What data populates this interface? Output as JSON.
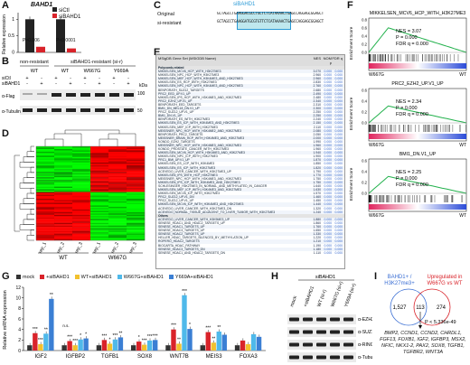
{
  "panels": {
    "A": {
      "label": "A",
      "gene": "BAHD1",
      "ylabel": "Relative expression",
      "legend": [
        "siCtl",
        "siBAHD1"
      ],
      "pvals": [
        "P=0.006",
        "P<0.0001"
      ],
      "chart_data": {
        "type": "bar",
        "categories": [
          "1",
          "2"
        ],
        "ylim": [
          0,
          1.2
        ],
        "yticks": [
          "0",
          "0.5",
          "1"
        ],
        "series": [
          {
            "name": "siCtl",
            "values": [
              1.0,
              1.0
            ]
          },
          {
            "name": "siBAHD1",
            "values": [
              0.17,
              0.12
            ]
          }
        ]
      }
    },
    "B": {
      "label": "B",
      "nonres": "non-resistant",
      "res": "siBAHD1-resistant (si-r)",
      "cols": [
        "WT",
        "WT",
        "W667G",
        "Y669A"
      ],
      "rows": [
        "siCtl",
        "siBAHD1"
      ],
      "plusminus": [
        [
          "+",
          "-",
          "+",
          "-",
          "+",
          "-",
          "+",
          "-"
        ],
        [
          "-",
          "+",
          "-",
          "+",
          "-",
          "+",
          "-",
          "+"
        ]
      ],
      "kda": "kDa",
      "kda1": "100",
      "kda2": "50",
      "blot1": "α-Flag",
      "blot2": "α-Tubulin"
    },
    "C": {
      "label": "C",
      "title": "siBAHD1",
      "row1": "Original",
      "row2": "si-resistant",
      "seq1": "GCTAGCCTGAAGGACGCCTGCTCTCATAAAACTGAGCCAGGAGCGGAGCT",
      "seq2": "GCTAGCCTGAAGGATGCGTGTTCTCATAAAACTGAGCCAGGAGCGGAGCT"
    },
    "D": {
      "label": "D",
      "reps": [
        "rep_1",
        "rep_2",
        "rep_3",
        "rep_1",
        "rep_2",
        "rep_3"
      ],
      "groups": [
        "WT",
        "W667G"
      ]
    },
    "E": {
      "label": "E",
      "header": [
        "MSigDB Gene Set (MSIGDB Name)",
        "NES",
        "NOM p",
        "FDR q"
      ],
      "section1": "Polycomb-related",
      "rows": [
        [
          "MIKKELSEN_MCV6_HCP_WITH_H3K27ME3",
          "3.070",
          "0.000",
          "0.000"
        ],
        [
          "MIKKELSEN_NPC_HCP_WITH_H3K27ME3",
          "2.960",
          "0.000",
          "0.000"
        ],
        [
          "MIKKELSEN_MEF_HCP_WITH_H3K4ME3_AND_H3K27ME3",
          "2.960",
          "0.000",
          "0.000"
        ],
        [
          "MIKKELSEN_ES_HCP_WITH_H3K27ME3",
          "2.830",
          "0.000",
          "0.000"
        ],
        [
          "MIKKELSEN_NPC_HCP_WITH_H3K4ME3_AND_H3K27ME3",
          "2.760",
          "0.000",
          "0.000"
        ],
        [
          "BENPORATH_SUZ12_TARGETS",
          "2.680",
          "0.000",
          "0.000"
        ],
        [
          "PRC2_EED_UP.V1_UP",
          "2.490",
          "0.000",
          "0.000"
        ],
        [
          "MIKKELSEN_IPS_HCP_WITH_H3K4ME3_AND_H3K27ME3",
          "2.480",
          "0.000",
          "0.000"
        ],
        [
          "PRC2_EZH2_UP.V1_UP",
          "2.340",
          "0.000",
          "0.000"
        ],
        [
          "BENPORATH_EED_TARGETS",
          "2.310",
          "0.000",
          "0.000"
        ],
        [
          "BMI1_DN_MEL18_DN.V1_UP",
          "2.300",
          "0.000",
          "0.000"
        ],
        [
          "PRC2_SUZ12_UP.V1_UP",
          "2.250",
          "0.000",
          "0.000"
        ],
        [
          "BMI1_DN.V1_UP",
          "2.250",
          "0.000",
          "0.000"
        ],
        [
          "BENPORATH_ES_WITH_H3K27ME3",
          "2.240",
          "0.000",
          "0.000"
        ],
        [
          "MIKKELSEN_ES_ICP_WITH_H3K4ME3_AND_H3K27ME3",
          "2.150",
          "0.000",
          "0.000"
        ],
        [
          "MIKKELSEN_MEF_ICP_WITH_H3K27ME3",
          "2.110",
          "0.000",
          "0.000"
        ],
        [
          "MEISSNER_NPC_HCP_WITH_H3K4ME2_AND_H3K27ME3",
          "2.080",
          "0.000",
          "0.000"
        ],
        [
          "BENPORATH_PRC2_TARGETS",
          "2.050",
          "0.000",
          "0.000"
        ],
        [
          "MEISSNER_BRAIN_HCP_WITH_H3K4ME3_AND_H3K27ME3",
          "2.000",
          "0.000",
          "0.000"
        ],
        [
          "KONDO_EZH2_TARGETS",
          "1.990",
          "0.000",
          "0.000"
        ],
        [
          "MEISSNER_NPC_HCP_WITH_H3K4ME3_AND_H3K27ME3",
          "1.960",
          "0.000",
          "0.000"
        ],
        [
          "KONDO_PROSTATE_CANCER_WITH_H3K27ME3",
          "1.960",
          "0.000",
          "0.000"
        ],
        [
          "MIKKELSEN_MCV6_HCP_WITH_H3K4ME3_AND_H3K27ME3",
          "1.940",
          "0.000",
          "0.000"
        ],
        [
          "MIKKELSEN_NPC_ICP_WITH_H3K27ME3",
          "1.900",
          "0.000",
          "0.000"
        ],
        [
          "PRC1_BMI_UP.V1_UP",
          "1.870",
          "0.000",
          "0.000"
        ],
        [
          "MIKKELSEN_ES_LCP_WITH_H3K4ME3",
          "1.850",
          "0.000",
          "0.000"
        ],
        [
          "MIKKELSEN_ES_ICP_WITH_H3K27ME3",
          "1.820",
          "0.000",
          "0.000"
        ],
        [
          "ACEVEDO_LIVER_CANCER_WITH_H3K27ME3_UP",
          "1.790",
          "0.000",
          "0.000"
        ],
        [
          "MIKKELSEN_IPS_WITH_HCP_H3K27ME3",
          "1.770",
          "0.000",
          "0.000"
        ],
        [
          "MEISSNER_NPC_HCP_WITH_H3K4ME3_AND_H3K27ME3",
          "1.750",
          "0.000",
          "0.000"
        ],
        [
          "MIKKELSEN_IPS_ICP_WITH_H3K4ME3_AND_H3K27ME3",
          "1.750",
          "0.000",
          "0.000"
        ],
        [
          "SCHLESINGER_H3K27ME3_IN_NORMAL_AND_METHYLATED_IN_CANCER",
          "1.640",
          "0.000",
          "0.000"
        ],
        [
          "MIKKELSEN_MEF_ICP_WITH_H3K4ME3_AND_H3K27ME3",
          "1.630",
          "0.000",
          "0.000"
        ],
        [
          "MIKKELSEN_MCV6_ICP_WITH_H3K27ME3",
          "1.570",
          "0.000",
          "0.000"
        ],
        [
          "PRC2_SUZ12_UP.V1_DN",
          "1.460",
          "0.000",
          "0.000"
        ],
        [
          "PRC2_SUZ12_UP.V1_UP",
          "1.450",
          "0.000",
          "0.000"
        ],
        [
          "MIKKELSEN_MCV6_ICP_WITH_H3K4ME3_AND_H3K27ME3",
          "1.440",
          "0.000",
          "0.000"
        ],
        [
          "ACEVEDO_LIVER_CANCER_WITH_H3K27ME3_DN",
          "1.320",
          "0.000",
          "0.000"
        ],
        [
          "ACEVEDO_NORMAL_TISSUE_ADJACENT_TO_LIVER_TUMOR_WITH_H3K27ME3",
          "1.240",
          "0.000",
          "0.000"
        ]
      ],
      "section2": "Others",
      "rows2": [
        [
          "ACEVEDO_LIVER_CANCER_WITH_H3K9ME3_UP",
          "1.880",
          "0.000",
          "0.000"
        ],
        [
          "SENESE_HDAC1_AND_HDAC2_TARGETS_UP",
          "1.860",
          "0.000",
          "0.000"
        ],
        [
          "SENESE_HDAC1_TARGETS_UP",
          "1.760",
          "0.000",
          "0.000"
        ],
        [
          "SENESE_HDAC3_TARGETS_UP",
          "1.650",
          "0.000",
          "0.000"
        ],
        [
          "SENESE_HDAC2_TARGETS_UP",
          "1.330",
          "0.000",
          "0.000"
        ],
        [
          "HELLER_HDAC_TARGETS_SILENCED_BY_METHYLATION_UP",
          "1.220",
          "0.000",
          "0.000"
        ],
        [
          "ROPERO_HDAC2_TARGETS",
          "1.210",
          "0.000",
          "0.000"
        ],
        [
          "BIOCARTA_HDAC_PATHWAY",
          "1.190",
          "0.000",
          "0.000"
        ],
        [
          "SENESE_HDAC3_TARGETS_DN",
          "1.180",
          "0.000",
          "0.000"
        ],
        [
          "SENESE_HDAC1_AND_HDAC2_TARGETS_DN",
          "1.110",
          "0.000",
          "0.000"
        ]
      ]
    },
    "F": {
      "label": "F",
      "ylabel": "Enrichment Score",
      "plots": [
        {
          "title": "MIKKELSEN_MCV6_HCP_WITH_H3K27ME3",
          "nes": "NES = 3.07",
          "p": "P = 0.000",
          "fdr": "FDR q = 0.000",
          "left": "W667G",
          "right": "WT",
          "peak": 0.8
        },
        {
          "title": "PRC2_EZH2_UP.V1_UP",
          "nes": "NES = 2.34",
          "p": "P = 0.000",
          "fdr": "FDR q = 0.000",
          "left": "W667G",
          "right": "WT",
          "peak": 0.55
        },
        {
          "title": "BMI1_DN.V1_UP",
          "nes": "NES = 2.25",
          "p": "P = 0.000",
          "fdr": "FDR q = 0.000",
          "left": "W667G",
          "right": "WT",
          "peak": 0.55
        }
      ],
      "yticks1": [
        "0.8",
        "0.6",
        "0.4",
        "0.2",
        "0.0"
      ],
      "yticks2": [
        "0.6",
        "0.4",
        "0.2",
        "0.0"
      ],
      "yticks3": [
        "0.6",
        "0.4",
        "0.2",
        "0.0"
      ]
    },
    "G": {
      "label": "G",
      "ylabel": "Relative mRNA expression",
      "legend": [
        "mock",
        "+siBAHD1",
        "WT+siBAHD1",
        "W667G+siBAHD1",
        "Y669A+siBAHD1"
      ],
      "colors": [
        "#333333",
        "#d9232a",
        "#f2c12e",
        "#4fb9ea",
        "#3b7fd4"
      ],
      "chart_data": {
        "type": "bar",
        "categories": [
          "IGF2",
          "IGFBP2",
          "TGFB1",
          "SOX8",
          "WNT7B",
          "MEIS3",
          "FOXA3"
        ],
        "ylim": [
          0,
          12
        ],
        "yticks": [
          "0",
          "2",
          "4",
          "6",
          "8",
          "10",
          "12"
        ],
        "series": [
          {
            "name": "mock",
            "values": [
              1,
              1,
              1,
              1,
              1,
              1,
              1
            ]
          },
          {
            "name": "+siBAHD1",
            "values": [
              3.3,
              1.8,
              2.0,
              1.7,
              4.0,
              3.5,
              1.9
            ]
          },
          {
            "name": "WT+siBAHD1",
            "values": [
              1.2,
              1.0,
              1.3,
              1.1,
              1.3,
              1.5,
              1.2
            ]
          },
          {
            "name": "W667G+siBAHD1",
            "values": [
              3.2,
              2.1,
              2.1,
              1.9,
              10.5,
              3.6,
              3.1
            ]
          },
          {
            "name": "Y669A+siBAHD1",
            "values": [
              9.8,
              2.3,
              2.5,
              2.0,
              4.1,
              3.0,
              2.6
            ]
          }
        ]
      },
      "stars": [
        "***",
        "***",
        "**",
        "**",
        "***",
        "***",
        "*",
        "*",
        "***",
        "*",
        "***",
        "**",
        "*",
        "***",
        "***",
        "***",
        "***",
        "**",
        "***",
        "*",
        "***",
        "**",
        "**"
      ],
      "ns": "n.s."
    },
    "H": {
      "label": "H",
      "top": "siBAHD1",
      "cols": [
        "mock",
        "+siBAHD1",
        "WT (si-r)",
        "W667G (si-r)",
        "Y669A (si-r)"
      ],
      "blots": [
        "α-EZH2",
        "α-SUZ12",
        "α-RING1B",
        "α-Tubulin"
      ]
    },
    "I": {
      "label": "I",
      "set1": "BAHD1+ / H3K27me3+",
      "set2": "Upregulated in W667G vs WT",
      "n1": "1,527",
      "n12": "113",
      "n2": "274",
      "pval": "P < 5.336e-49",
      "genes": "BMP2, CCND1, CCND2, CHRDL1, FGF13, FOXB1, IGF2, IGFBP3, MSX2, NFIC, NKX1-2, PAX2, SOX8, TGFB1, TGFBR2, WNT3A"
    }
  }
}
